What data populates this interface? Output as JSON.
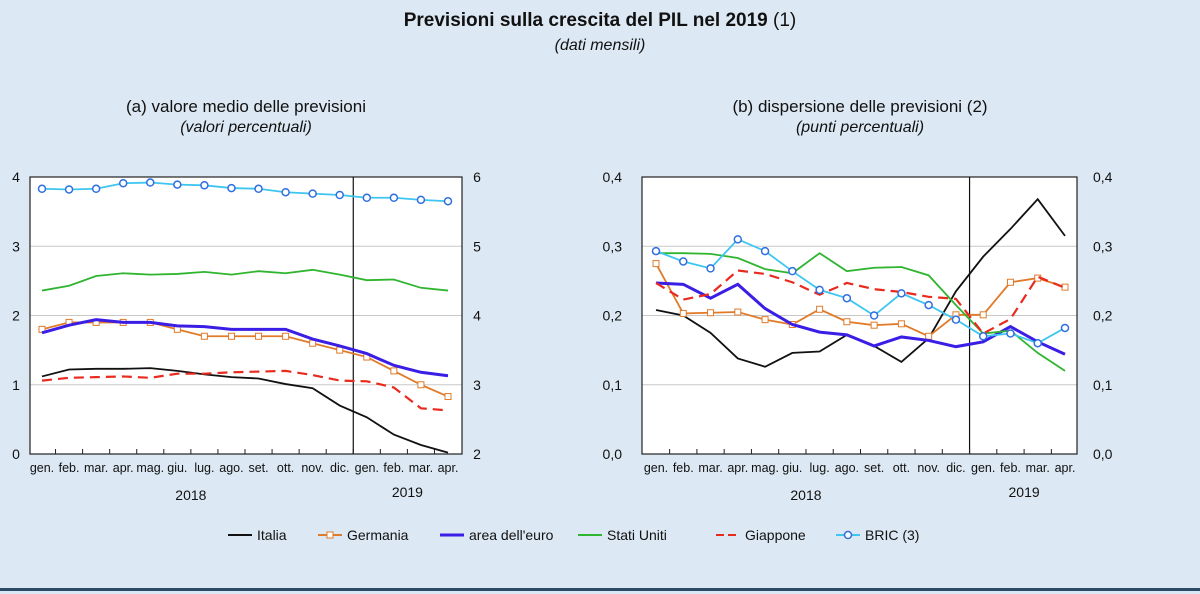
{
  "title": "Previsioni sulla crescita del PIL nel 2019",
  "title_note": "(1)",
  "subtitle": "(dati mensili)",
  "legend": [
    {
      "name": "Italia",
      "color": "#111111",
      "style": "solid"
    },
    {
      "name": "Germania",
      "color": "#e07b2a",
      "style": "square-marker"
    },
    {
      "name": "area dell'euro",
      "color": "#3a1ee6",
      "style": "thick"
    },
    {
      "name": "Stati Uniti",
      "color": "#2fb52f",
      "style": "solid"
    },
    {
      "name": "Giappone",
      "color": "#e82a1f",
      "style": "dashed"
    },
    {
      "name": "BRIC (3)",
      "color": "#3ec6f0",
      "style": "circle-marker"
    }
  ],
  "chart_data": [
    {
      "type": "line",
      "title": "(a) valore medio delle previsioni",
      "subtitle": "(valori percentuali)",
      "categories": [
        "gen.",
        "feb.",
        "mar.",
        "apr.",
        "mag.",
        "giu.",
        "lug.",
        "ago.",
        "set.",
        "ott.",
        "nov.",
        "dic.",
        "gen.",
        "feb.",
        "mar.",
        "apr."
      ],
      "years": [
        "2018",
        "2019"
      ],
      "ylim": [
        0,
        4
      ],
      "yticks": [
        "0",
        "1",
        "2",
        "3",
        "4"
      ],
      "y2lim": [
        2,
        6
      ],
      "y2ticks": [
        "2",
        "3",
        "4",
        "5",
        "6"
      ],
      "grid": true,
      "series": [
        {
          "name": "Italia",
          "axis": "left",
          "values": [
            1.12,
            1.22,
            1.23,
            1.23,
            1.24,
            1.2,
            1.15,
            1.11,
            1.09,
            1.01,
            0.95,
            0.7,
            0.53,
            0.28,
            0.13,
            0.02
          ]
        },
        {
          "name": "Germania",
          "axis": "left",
          "values": [
            1.8,
            1.9,
            1.9,
            1.9,
            1.9,
            1.8,
            1.7,
            1.7,
            1.7,
            1.7,
            1.6,
            1.5,
            1.4,
            1.2,
            1.0,
            0.83
          ]
        },
        {
          "name": "area dell'euro",
          "axis": "left",
          "values": [
            1.75,
            1.86,
            1.94,
            1.9,
            1.9,
            1.85,
            1.84,
            1.8,
            1.8,
            1.8,
            1.66,
            1.56,
            1.45,
            1.28,
            1.18,
            1.13
          ]
        },
        {
          "name": "Stati Uniti",
          "axis": "left",
          "values": [
            2.36,
            2.43,
            2.57,
            2.61,
            2.59,
            2.6,
            2.63,
            2.59,
            2.64,
            2.61,
            2.66,
            2.59,
            2.51,
            2.52,
            2.4,
            2.36
          ]
        },
        {
          "name": "Giappone",
          "axis": "left",
          "values": [
            1.06,
            1.1,
            1.11,
            1.12,
            1.1,
            1.16,
            1.16,
            1.18,
            1.19,
            1.2,
            1.14,
            1.06,
            1.05,
            0.96,
            0.66,
            0.63
          ]
        },
        {
          "name": "BRIC (3)",
          "axis": "right",
          "values": [
            5.83,
            5.82,
            5.83,
            5.91,
            5.92,
            5.89,
            5.88,
            5.84,
            5.83,
            5.78,
            5.76,
            5.74,
            5.7,
            5.7,
            5.67,
            5.65
          ]
        }
      ]
    },
    {
      "type": "line",
      "title": "(b) dispersione delle previsioni (2)",
      "subtitle": "(punti percentuali)",
      "categories": [
        "gen.",
        "feb.",
        "mar.",
        "apr.",
        "mag.",
        "giu.",
        "lug.",
        "ago.",
        "set.",
        "ott.",
        "nov.",
        "dic.",
        "gen.",
        "feb.",
        "mar.",
        "apr."
      ],
      "years": [
        "2018",
        "2019"
      ],
      "ylim": [
        0,
        0.4
      ],
      "yticks": [
        "0,0",
        "0,1",
        "0,2",
        "0,3",
        "0,4"
      ],
      "y2lim": [
        0,
        0.4
      ],
      "y2ticks": [
        "0,0",
        "0,1",
        "0,2",
        "0,3",
        "0,4"
      ],
      "grid": true,
      "series": [
        {
          "name": "Italia",
          "axis": "left",
          "values": [
            0.208,
            0.2,
            0.175,
            0.138,
            0.126,
            0.146,
            0.148,
            0.172,
            0.156,
            0.133,
            0.167,
            0.235,
            0.285,
            0.325,
            0.368,
            0.315
          ]
        },
        {
          "name": "Germania",
          "axis": "left",
          "values": [
            0.275,
            0.203,
            0.204,
            0.205,
            0.194,
            0.187,
            0.209,
            0.191,
            0.186,
            0.188,
            0.17,
            0.201,
            0.201,
            0.248,
            0.254,
            0.241
          ]
        },
        {
          "name": "area dell'euro",
          "axis": "left",
          "values": [
            0.247,
            0.245,
            0.225,
            0.245,
            0.21,
            0.187,
            0.176,
            0.172,
            0.156,
            0.169,
            0.164,
            0.155,
            0.162,
            0.184,
            0.162,
            0.144
          ]
        },
        {
          "name": "Stati Uniti",
          "axis": "left",
          "values": [
            0.29,
            0.29,
            0.289,
            0.283,
            0.267,
            0.261,
            0.29,
            0.264,
            0.269,
            0.27,
            0.258,
            0.215,
            0.174,
            0.178,
            0.146,
            0.12
          ]
        },
        {
          "name": "Giappone",
          "axis": "left",
          "values": [
            0.247,
            0.223,
            0.231,
            0.265,
            0.26,
            0.248,
            0.23,
            0.247,
            0.238,
            0.234,
            0.227,
            0.224,
            0.174,
            0.195,
            0.256,
            0.24
          ]
        },
        {
          "name": "BRIC (3)",
          "axis": "left",
          "values": [
            0.293,
            0.278,
            0.268,
            0.31,
            0.293,
            0.264,
            0.237,
            0.225,
            0.2,
            0.232,
            0.215,
            0.194,
            0.17,
            0.174,
            0.16,
            0.182
          ]
        }
      ]
    }
  ]
}
